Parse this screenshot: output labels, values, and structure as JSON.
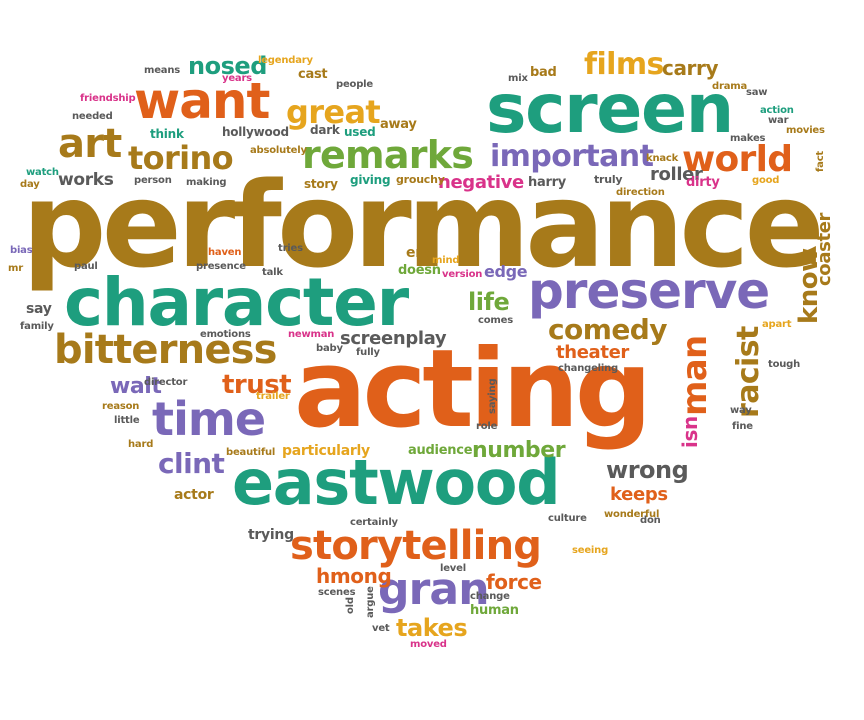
{
  "palette": {
    "orange": "#E0601A",
    "teal": "#1E9E7E",
    "brown": "#A77A1A",
    "purple": "#7A68B8",
    "gold": "#E6A51E",
    "green": "#6FA83A",
    "gray": "#5A5A5A",
    "pink": "#D9338A"
  },
  "words": [
    {
      "id": "performance",
      "text": "performance",
      "color": "brown"
    },
    {
      "id": "acting",
      "text": "acting",
      "color": "orange"
    },
    {
      "id": "screen",
      "text": "screen",
      "color": "teal"
    },
    {
      "id": "character",
      "text": "character",
      "color": "teal"
    },
    {
      "id": "eastwood",
      "text": "eastwood",
      "color": "teal"
    },
    {
      "id": "preserve",
      "text": "preserve",
      "color": "purple"
    },
    {
      "id": "want",
      "text": "want",
      "color": "orange"
    },
    {
      "id": "storytelling",
      "text": "storytelling",
      "color": "orange"
    },
    {
      "id": "bitterness",
      "text": "bitterness",
      "color": "brown"
    },
    {
      "id": "time",
      "text": "time",
      "color": "purple"
    },
    {
      "id": "remarks",
      "text": "remarks",
      "color": "green"
    },
    {
      "id": "world",
      "text": "world",
      "color": "orange"
    },
    {
      "id": "art",
      "text": "art",
      "color": "brown"
    },
    {
      "id": "torino",
      "text": "torino",
      "color": "brown"
    },
    {
      "id": "important",
      "text": "important",
      "color": "purple"
    },
    {
      "id": "great",
      "text": "great",
      "color": "gold"
    },
    {
      "id": "gran",
      "text": "gran",
      "color": "purple"
    },
    {
      "id": "films",
      "text": "films",
      "color": "gold"
    },
    {
      "id": "nosed",
      "text": "nosed",
      "color": "teal"
    },
    {
      "id": "comedy",
      "text": "comedy",
      "color": "brown"
    },
    {
      "id": "racist",
      "text": "racist",
      "color": "brown"
    },
    {
      "id": "man",
      "text": "man",
      "color": "orange"
    },
    {
      "id": "clint",
      "text": "clint",
      "color": "purple"
    },
    {
      "id": "trust",
      "text": "trust",
      "color": "orange"
    },
    {
      "id": "life",
      "text": "life",
      "color": "green"
    },
    {
      "id": "know",
      "text": "know",
      "color": "brown"
    },
    {
      "id": "walt",
      "text": "walt",
      "color": "purple"
    },
    {
      "id": "number",
      "text": "number",
      "color": "green"
    },
    {
      "id": "wrong",
      "text": "wrong",
      "color": "gray"
    },
    {
      "id": "hmong",
      "text": "hmong",
      "color": "orange"
    },
    {
      "id": "takes",
      "text": "takes",
      "color": "gold"
    },
    {
      "id": "force",
      "text": "force",
      "color": "orange"
    },
    {
      "id": "negative",
      "text": "negative",
      "color": "pink"
    },
    {
      "id": "carry",
      "text": "carry",
      "color": "brown"
    },
    {
      "id": "screenplay",
      "text": "screenplay",
      "color": "gray"
    },
    {
      "id": "theater",
      "text": "theater",
      "color": "orange"
    },
    {
      "id": "roller",
      "text": "roller",
      "color": "gray"
    },
    {
      "id": "coaster",
      "text": "coaster",
      "color": "brown"
    },
    {
      "id": "isn",
      "text": "isn",
      "color": "pink"
    },
    {
      "id": "keeps",
      "text": "keeps",
      "color": "orange"
    },
    {
      "id": "works",
      "text": "works",
      "color": "gray"
    },
    {
      "id": "edge",
      "text": "edge",
      "color": "purple"
    },
    {
      "id": "particularly",
      "text": "particularly",
      "color": "gold"
    },
    {
      "id": "audience",
      "text": "audience",
      "color": "green"
    },
    {
      "id": "end",
      "text": "end",
      "color": "brown"
    },
    {
      "id": "doesn",
      "text": "doesn",
      "color": "green"
    },
    {
      "id": "harry",
      "text": "harry",
      "color": "gray"
    },
    {
      "id": "actor",
      "text": "actor",
      "color": "brown"
    },
    {
      "id": "trying",
      "text": "trying",
      "color": "gray"
    },
    {
      "id": "human",
      "text": "human",
      "color": "green"
    },
    {
      "id": "say",
      "text": "say",
      "color": "gray"
    },
    {
      "id": "bad",
      "text": "bad",
      "color": "brown"
    },
    {
      "id": "away",
      "text": "away",
      "color": "brown"
    },
    {
      "id": "cast",
      "text": "cast",
      "color": "brown"
    },
    {
      "id": "hollywood",
      "text": "hollywood",
      "color": "gray"
    },
    {
      "id": "think",
      "text": "think",
      "color": "teal"
    },
    {
      "id": "dark",
      "text": "dark",
      "color": "gray"
    },
    {
      "id": "used",
      "text": "used",
      "color": "teal"
    },
    {
      "id": "story",
      "text": "story",
      "color": "brown"
    },
    {
      "id": "giving",
      "text": "giving",
      "color": "teal"
    },
    {
      "id": "grouchy",
      "text": "grouchy",
      "color": "brown"
    },
    {
      "id": "dirty",
      "text": "dirty",
      "color": "pink"
    },
    {
      "id": "truly",
      "text": "truly",
      "color": "gray"
    },
    {
      "id": "good",
      "text": "good",
      "color": "gold"
    },
    {
      "id": "legendary",
      "text": "legendary",
      "color": "gold"
    },
    {
      "id": "people",
      "text": "people",
      "color": "gray"
    },
    {
      "id": "means",
      "text": "means",
      "color": "gray"
    },
    {
      "id": "years",
      "text": "years",
      "color": "pink"
    },
    {
      "id": "friendship",
      "text": "friendship",
      "color": "pink"
    },
    {
      "id": "needed",
      "text": "needed",
      "color": "gray"
    },
    {
      "id": "watch",
      "text": "watch",
      "color": "teal"
    },
    {
      "id": "day",
      "text": "day",
      "color": "brown"
    },
    {
      "id": "absolutely",
      "text": "absolutely",
      "color": "brown"
    },
    {
      "id": "person",
      "text": "person",
      "color": "gray"
    },
    {
      "id": "making",
      "text": "making",
      "color": "gray"
    },
    {
      "id": "mix",
      "text": "mix",
      "color": "gray"
    },
    {
      "id": "drama",
      "text": "drama",
      "color": "brown"
    },
    {
      "id": "saw",
      "text": "saw",
      "color": "gray"
    },
    {
      "id": "action",
      "text": "action",
      "color": "teal"
    },
    {
      "id": "war",
      "text": "war",
      "color": "gray"
    },
    {
      "id": "movies",
      "text": "movies",
      "color": "brown"
    },
    {
      "id": "makes",
      "text": "makes",
      "color": "gray"
    },
    {
      "id": "knack",
      "text": "knack",
      "color": "brown"
    },
    {
      "id": "fact",
      "text": "fact",
      "color": "brown"
    },
    {
      "id": "direction",
      "text": "direction",
      "color": "brown"
    },
    {
      "id": "bias",
      "text": "bias",
      "color": "purple"
    },
    {
      "id": "mr",
      "text": "mr",
      "color": "brown"
    },
    {
      "id": "paul",
      "text": "paul",
      "color": "gray"
    },
    {
      "id": "haven",
      "text": "haven",
      "color": "orange"
    },
    {
      "id": "presence",
      "text": "presence",
      "color": "gray"
    },
    {
      "id": "tries",
      "text": "tries",
      "color": "gray"
    },
    {
      "id": "talk",
      "text": "talk",
      "color": "gray"
    },
    {
      "id": "version",
      "text": "version",
      "color": "pink"
    },
    {
      "id": "comes",
      "text": "comes",
      "color": "gray"
    },
    {
      "id": "family",
      "text": "family",
      "color": "gray"
    },
    {
      "id": "emotions",
      "text": "emotions",
      "color": "gray"
    },
    {
      "id": "newman",
      "text": "newman",
      "color": "pink"
    },
    {
      "id": "baby",
      "text": "baby",
      "color": "gray"
    },
    {
      "id": "fully",
      "text": "fully",
      "color": "gray"
    },
    {
      "id": "changeling",
      "text": "changeling",
      "color": "gray"
    },
    {
      "id": "apart",
      "text": "apart",
      "color": "gold"
    },
    {
      "id": "tough",
      "text": "tough",
      "color": "gray"
    },
    {
      "id": "director",
      "text": "director",
      "color": "gray"
    },
    {
      "id": "trailer",
      "text": "trailer",
      "color": "gold"
    },
    {
      "id": "reason",
      "text": "reason",
      "color": "brown"
    },
    {
      "id": "little",
      "text": "little",
      "color": "gray"
    },
    {
      "id": "saying",
      "text": "saying",
      "color": "gray"
    },
    {
      "id": "role",
      "text": "role",
      "color": "gray"
    },
    {
      "id": "way",
      "text": "way",
      "color": "gray"
    },
    {
      "id": "fine",
      "text": "fine",
      "color": "gray"
    },
    {
      "id": "hard",
      "text": "hard",
      "color": "brown"
    },
    {
      "id": "beautiful",
      "text": "beautiful",
      "color": "brown"
    },
    {
      "id": "wonderful",
      "text": "wonderful",
      "color": "brown"
    },
    {
      "id": "don",
      "text": "don",
      "color": "gray"
    },
    {
      "id": "culture",
      "text": "culture",
      "color": "gray"
    },
    {
      "id": "certainly",
      "text": "certainly",
      "color": "gray"
    },
    {
      "id": "seeing",
      "text": "seeing",
      "color": "gold"
    },
    {
      "id": "level",
      "text": "level",
      "color": "gray"
    },
    {
      "id": "argue",
      "text": "argue",
      "color": "gray"
    },
    {
      "id": "scenes",
      "text": "scenes",
      "color": "gray"
    },
    {
      "id": "old",
      "text": "old",
      "color": "gray"
    },
    {
      "id": "vet",
      "text": "vet",
      "color": "gray"
    },
    {
      "id": "change",
      "text": "change",
      "color": "gray"
    },
    {
      "id": "moved",
      "text": "moved",
      "color": "pink"
    },
    {
      "id": "mind",
      "text": "mind",
      "color": "gold"
    }
  ]
}
